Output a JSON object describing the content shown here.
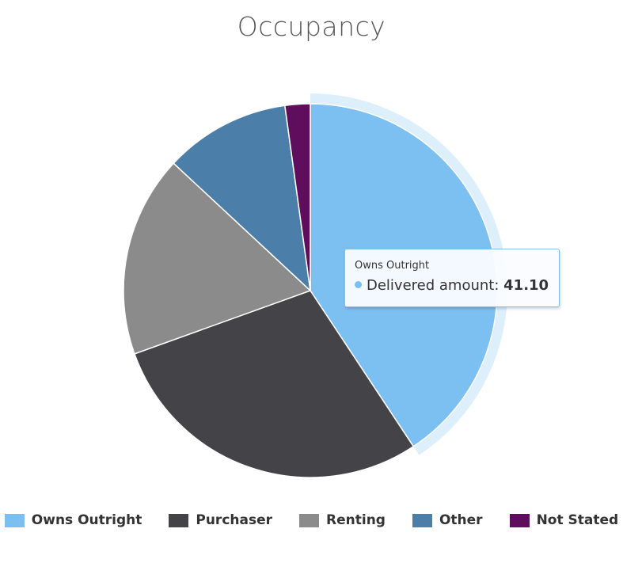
{
  "chart_data": {
    "type": "pie",
    "title": "Occupancy",
    "series_name": "Delivered amount",
    "categories": [
      "Owns Outright",
      "Purchaser",
      "Renting",
      "Other",
      "Not Stated"
    ],
    "values": [
      41.1,
      29.1,
      17.6,
      11.0,
      2.2
    ],
    "colors": [
      "#7cc0f2",
      "#434348",
      "#8b8b8b",
      "#4b7ea8",
      "#5e0e5c"
    ],
    "highlighted": "Owns Outright",
    "legend_position": "bottom"
  },
  "tooltip": {
    "header": "Owns Outright",
    "series_label": "Delivered amount",
    "value": "41.10"
  }
}
